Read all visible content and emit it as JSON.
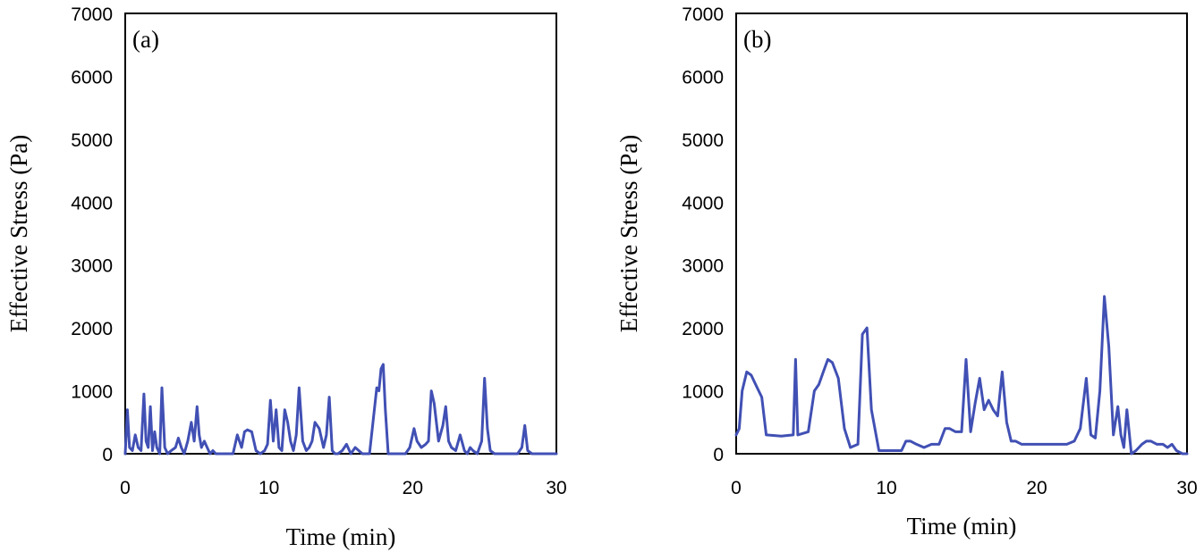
{
  "chart_data": [
    {
      "type": "line",
      "panel_label": "(a)",
      "xlabel": "Time (min)",
      "ylabel": "Effective Stress (Pa)",
      "xlim": [
        0,
        30
      ],
      "ylim": [
        0,
        7000
      ],
      "xticks": [
        "0",
        "10",
        "20",
        "30"
      ],
      "yticks": [
        "0",
        "1000",
        "2000",
        "3000",
        "4000",
        "5000",
        "6000",
        "7000"
      ],
      "color": "#4150b4",
      "series": [
        {
          "name": "Effective Stress",
          "x": [
            0,
            0.15,
            0.3,
            0.5,
            0.7,
            0.9,
            1.1,
            1.3,
            1.45,
            1.6,
            1.75,
            1.9,
            2.05,
            2.2,
            2.4,
            2.55,
            2.75,
            2.95,
            3.2,
            3.5,
            3.7,
            3.9,
            4.1,
            4.35,
            4.6,
            4.8,
            5.0,
            5.15,
            5.3,
            5.5,
            5.7,
            5.9,
            6.1,
            6.3,
            6.6,
            7.0,
            7.5,
            7.8,
            8.1,
            8.3,
            8.5,
            8.8,
            9.1,
            9.4,
            9.7,
            9.9,
            10.1,
            10.3,
            10.5,
            10.7,
            10.9,
            11.1,
            11.3,
            11.5,
            11.7,
            11.9,
            12.1,
            12.35,
            12.6,
            12.8,
            13.0,
            13.2,
            13.5,
            13.8,
            14.0,
            14.2,
            14.4,
            14.6,
            14.8,
            15.1,
            15.4,
            15.7,
            16.0,
            16.5,
            17.0,
            17.5,
            17.65,
            17.8,
            17.95,
            18.1,
            18.3,
            18.6,
            19.0,
            19.5,
            19.8,
            20.1,
            20.3,
            20.6,
            20.9,
            21.1,
            21.3,
            21.5,
            21.8,
            22.1,
            22.3,
            22.5,
            22.7,
            23.0,
            23.3,
            23.6,
            23.8,
            24.0,
            24.2,
            24.5,
            24.8,
            25.0,
            25.2,
            25.4,
            25.7,
            26.2,
            26.8,
            27.3,
            27.6,
            27.8,
            28.0,
            28.3,
            28.8,
            29.3,
            29.7,
            30.0
          ],
          "y": [
            0,
            700,
            100,
            50,
            300,
            100,
            50,
            950,
            200,
            100,
            750,
            50,
            350,
            100,
            0,
            1050,
            100,
            0,
            50,
            100,
            250,
            100,
            0,
            200,
            500,
            200,
            750,
            300,
            100,
            200,
            100,
            0,
            50,
            0,
            0,
            0,
            0,
            300,
            100,
            350,
            380,
            350,
            50,
            0,
            50,
            150,
            850,
            200,
            700,
            100,
            50,
            700,
            500,
            200,
            50,
            300,
            1050,
            200,
            50,
            100,
            200,
            500,
            400,
            100,
            300,
            900,
            50,
            0,
            0,
            50,
            150,
            0,
            100,
            0,
            0,
            1050,
            1000,
            1350,
            1420,
            700,
            0,
            0,
            0,
            0,
            100,
            400,
            200,
            100,
            150,
            200,
            1000,
            800,
            200,
            450,
            750,
            200,
            100,
            50,
            300,
            50,
            0,
            100,
            50,
            0,
            200,
            1200,
            400,
            50,
            0,
            0,
            0,
            0,
            100,
            450,
            50,
            0,
            0,
            0,
            0,
            0
          ]
        }
      ]
    },
    {
      "type": "line",
      "panel_label": "(b)",
      "xlabel": "Time (min)",
      "ylabel": "Effective Stress (Pa)",
      "xlim": [
        0,
        30
      ],
      "ylim": [
        0,
        7000
      ],
      "xticks": [
        "0",
        "10",
        "20",
        "30"
      ],
      "yticks": [
        "0",
        "1000",
        "2000",
        "3000",
        "4000",
        "5000",
        "6000",
        "7000"
      ],
      "color": "#4150b4",
      "series": [
        {
          "name": "Effective Stress",
          "x": [
            0,
            0.2,
            0.4,
            0.7,
            1.0,
            1.4,
            1.7,
            2.0,
            3.0,
            3.8,
            3.95,
            4.1,
            4.8,
            5.2,
            5.5,
            5.8,
            6.1,
            6.4,
            6.8,
            7.2,
            7.6,
            8.1,
            8.4,
            8.7,
            9.0,
            9.5,
            10.0,
            10.5,
            11.0,
            11.3,
            11.6,
            12.0,
            12.5,
            13.0,
            13.5,
            13.9,
            14.2,
            14.6,
            15.0,
            15.3,
            15.6,
            15.9,
            16.2,
            16.5,
            16.8,
            17.1,
            17.4,
            17.7,
            18.0,
            18.3,
            18.6,
            19.0,
            19.5,
            20.0,
            20.5,
            21.0,
            21.5,
            22.0,
            22.5,
            22.9,
            23.3,
            23.6,
            23.9,
            24.2,
            24.5,
            24.8,
            25.1,
            25.4,
            25.6,
            25.8,
            26.0,
            26.3,
            26.6,
            27.0,
            27.3,
            27.6,
            28.0,
            28.4,
            28.7,
            29.0,
            29.3,
            29.7,
            30.0
          ],
          "y": [
            300,
            400,
            1000,
            1300,
            1250,
            1050,
            900,
            300,
            280,
            300,
            1500,
            300,
            350,
            1000,
            1100,
            1300,
            1500,
            1450,
            1200,
            400,
            100,
            150,
            1900,
            2000,
            700,
            50,
            50,
            50,
            50,
            200,
            200,
            150,
            100,
            150,
            150,
            400,
            400,
            350,
            350,
            1500,
            350,
            800,
            1200,
            700,
            850,
            700,
            600,
            1300,
            500,
            200,
            200,
            150,
            150,
            150,
            150,
            150,
            150,
            150,
            200,
            400,
            1200,
            300,
            250,
            1000,
            2500,
            1700,
            300,
            750,
            300,
            100,
            700,
            0,
            50,
            150,
            200,
            200,
            150,
            150,
            100,
            150,
            50,
            0,
            0
          ]
        }
      ]
    }
  ]
}
